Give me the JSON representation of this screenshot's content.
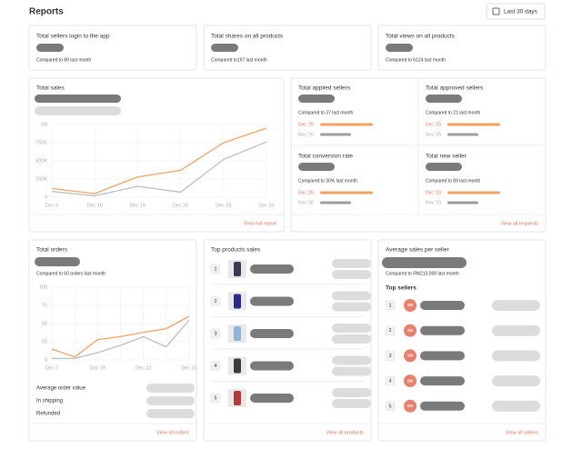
{
  "header": {
    "title": "Reports",
    "date_range": "Last 30 days"
  },
  "summary_cards": [
    {
      "title": "Total sellers login to the app",
      "comparison": "Compared to 89 last month"
    },
    {
      "title": "Total shares on all products",
      "comparison": "Compared to197 last month"
    },
    {
      "title": "Total views on all products",
      "comparison": "Compared to 6124 last month"
    }
  ],
  "sales": {
    "title": "Total sales",
    "link": "View full report",
    "chart": {
      "type": "line",
      "categories": [
        "Dec 5",
        "Dec 10",
        "Dec 15",
        "Dec 20",
        "Dec 25",
        "Dec 31"
      ],
      "series": [
        {
          "color": "#f4a261",
          "values": [
            120000,
            50000,
            280000,
            370000,
            750000,
            950000
          ]
        },
        {
          "color": "#bdbdbd",
          "values": [
            80000,
            20000,
            150000,
            70000,
            520000,
            760000
          ]
        }
      ],
      "ylim": [
        0,
        1000000
      ],
      "yticks": [
        {
          "value": 0,
          "label": "0"
        },
        {
          "value": 250000,
          "label": "250K"
        },
        {
          "value": 500000,
          "label": "500K"
        },
        {
          "value": 750000,
          "label": "750K"
        },
        {
          "value": 1000000,
          "label": "1M"
        }
      ],
      "grid": true
    }
  },
  "requests": {
    "link": "View all requests",
    "cards": [
      {
        "title": "Total applied sellers",
        "comparison": "Compared to 37 last month",
        "legend": [
          "Dec '20",
          "Nov '20"
        ]
      },
      {
        "title": "Total approved sellers",
        "comparison": "Compared to 21 last month",
        "legend": [
          "Dec '20",
          "Nov '20"
        ]
      },
      {
        "title": "Total conversion rate",
        "comparison": "Compared to 30% last month",
        "legend": [
          "Dec '20",
          "Nov '20"
        ]
      },
      {
        "title": "Total new seller",
        "comparison": "Compared to 89 last month",
        "legend": [
          "Dec '20",
          "Nov '20"
        ]
      }
    ]
  },
  "orders": {
    "title": "Total orders",
    "comparison": "Compared to 60 orders last month",
    "link": "View all orders",
    "chart": {
      "type": "line",
      "categories": [
        "Dec 7",
        null,
        "Dec 15",
        null,
        "Dec 22",
        null,
        "Dec 31"
      ],
      "series": [
        {
          "color": "#f4a261",
          "values": [
            15,
            4,
            28,
            32,
            38,
            43,
            60
          ]
        },
        {
          "color": "#bdbdbd",
          "values": [
            2,
            2,
            10,
            20,
            32,
            18,
            55
          ]
        }
      ],
      "ylim": [
        0,
        100
      ],
      "yticks": [
        0,
        25,
        50,
        75,
        100
      ],
      "grid": true
    },
    "metrics": [
      "Average order value",
      "In shipping",
      "Refunded"
    ]
  },
  "products": {
    "title": "Top products sales",
    "link": "View all products",
    "ranks": [
      1,
      2,
      3,
      4,
      5
    ]
  },
  "sellers": {
    "title": "Average sales per seller",
    "comparison": "Compared to RM210,000 last month",
    "subtitle": "Top sellers",
    "link": "View all sellers",
    "rows": [
      {
        "rank": 1,
        "initials": "SN"
      },
      {
        "rank": 2,
        "initials": "SN"
      },
      {
        "rank": 3,
        "initials": "SN"
      },
      {
        "rank": 4,
        "initials": "SN"
      },
      {
        "rank": 5,
        "initials": "SN"
      }
    ]
  }
}
